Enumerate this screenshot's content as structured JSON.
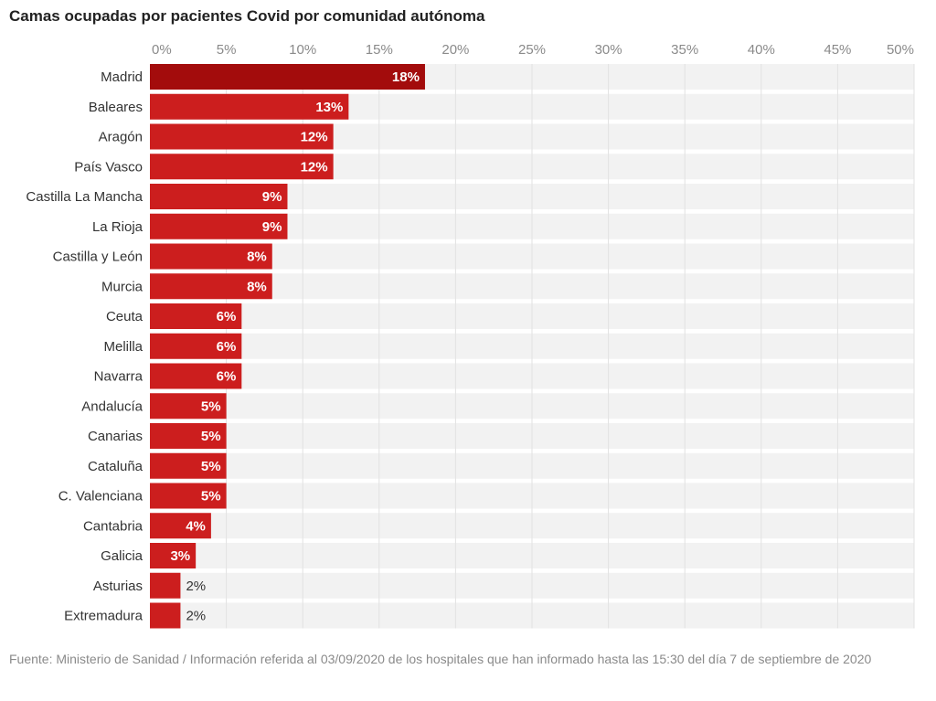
{
  "chart_data": {
    "type": "bar",
    "orientation": "horizontal",
    "title": "Camas ocupadas por pacientes Covid por comunidad autónoma",
    "categories": [
      "Madrid",
      "Baleares",
      "Aragón",
      "País Vasco",
      "Castilla La Mancha",
      "La Rioja",
      "Castilla y León",
      "Murcia",
      "Ceuta",
      "Melilla",
      "Navarra",
      "Andalucía",
      "Canarias",
      "Cataluña",
      "C. Valenciana",
      "Cantabria",
      "Galicia",
      "Asturias",
      "Extremadura"
    ],
    "values": [
      18,
      13,
      12,
      12,
      9,
      9,
      8,
      8,
      6,
      6,
      6,
      5,
      5,
      5,
      5,
      4,
      3,
      2,
      2
    ],
    "value_labels": [
      "18%",
      "13%",
      "12%",
      "12%",
      "9%",
      "9%",
      "8%",
      "8%",
      "6%",
      "6%",
      "6%",
      "5%",
      "5%",
      "5%",
      "5%",
      "4%",
      "3%",
      "2%",
      "2%"
    ],
    "xlim": [
      0,
      50
    ],
    "x_ticks": [
      0,
      5,
      10,
      15,
      20,
      25,
      30,
      35,
      40,
      45,
      50
    ],
    "x_tick_labels": [
      "0%",
      "5%",
      "10%",
      "15%",
      "20%",
      "25%",
      "30%",
      "35%",
      "40%",
      "45%",
      "50%"
    ],
    "grid": true,
    "colors": {
      "highlight": "#a30c0c",
      "bar": "#cc1e1e",
      "row_band": "#f2f2f2",
      "grid": "#ffffff"
    }
  },
  "footer": "Fuente: Ministerio de Sanidad / Información referida al 03/09/2020 de los hospitales que han informado hasta las 15:30 del día 7 de septiembre de 2020"
}
